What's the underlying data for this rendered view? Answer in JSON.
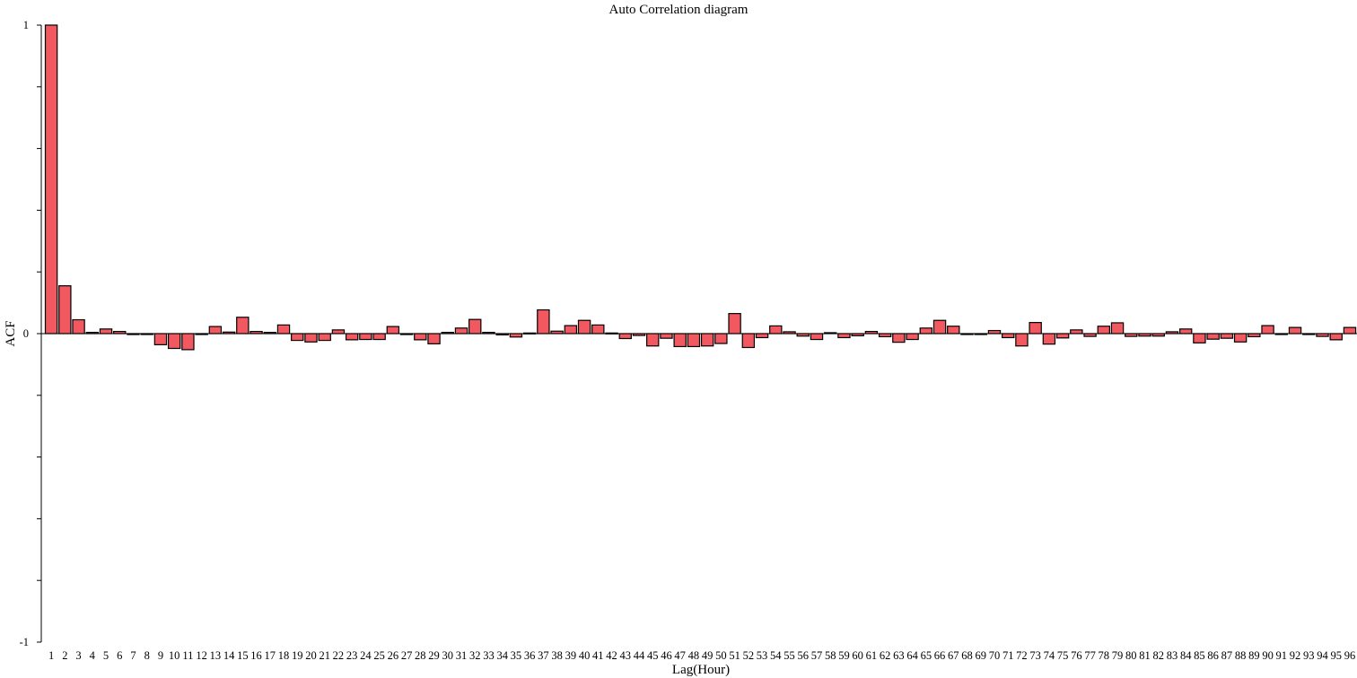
{
  "chart_data": {
    "type": "bar",
    "title": "Auto Correlation diagram",
    "xlabel": "Lag(Hour)",
    "ylabel": "ACF",
    "ylim": [
      -1,
      1
    ],
    "yticks": [
      {
        "value": 1,
        "label": "1"
      },
      {
        "value": 0.8,
        "label": ""
      },
      {
        "value": 0.6,
        "label": ""
      },
      {
        "value": 0.4,
        "label": ""
      },
      {
        "value": 0.2,
        "label": ""
      },
      {
        "value": 0,
        "label": "0"
      },
      {
        "value": -0.2,
        "label": ""
      },
      {
        "value": -0.4,
        "label": ""
      },
      {
        "value": -0.6,
        "label": ""
      },
      {
        "value": -0.8,
        "label": ""
      },
      {
        "value": -1,
        "label": "-1"
      }
    ],
    "grid": false,
    "legend": "none",
    "bar_color": "#f25860",
    "bar_edge_color": "#000000",
    "categories": [
      "1",
      "2",
      "3",
      "4",
      "5",
      "6",
      "7",
      "8",
      "9",
      "10",
      "11",
      "12",
      "13",
      "14",
      "15",
      "16",
      "17",
      "18",
      "19",
      "20",
      "21",
      "22",
      "23",
      "24",
      "25",
      "26",
      "27",
      "28",
      "29",
      "30",
      "31",
      "32",
      "33",
      "34",
      "35",
      "36",
      "37",
      "38",
      "39",
      "40",
      "41",
      "42",
      "43",
      "44",
      "45",
      "46",
      "47",
      "48",
      "49",
      "50",
      "51",
      "52",
      "53",
      "54",
      "55",
      "56",
      "57",
      "58",
      "59",
      "60",
      "61",
      "62",
      "63",
      "64",
      "65",
      "66",
      "67",
      "68",
      "69",
      "70",
      "71",
      "72",
      "73",
      "74",
      "75",
      "76",
      "77",
      "78",
      "79",
      "80",
      "81",
      "82",
      "83",
      "84",
      "85",
      "86",
      "87",
      "88",
      "89",
      "90",
      "91",
      "92",
      "93",
      "94",
      "95",
      "96"
    ],
    "values": [
      1.0,
      0.155,
      0.045,
      0.004,
      0.015,
      0.007,
      -0.003,
      -0.002,
      -0.036,
      -0.048,
      -0.052,
      -0.002,
      0.023,
      0.005,
      0.053,
      0.007,
      0.004,
      0.028,
      -0.022,
      -0.027,
      -0.022,
      0.012,
      -0.02,
      -0.019,
      -0.019,
      0.023,
      -0.003,
      -0.02,
      -0.033,
      0.004,
      0.018,
      0.046,
      0.004,
      -0.004,
      -0.011,
      0.002,
      0.077,
      0.008,
      0.026,
      0.043,
      0.028,
      0.002,
      -0.016,
      -0.006,
      -0.04,
      -0.015,
      -0.042,
      -0.042,
      -0.04,
      -0.032,
      0.065,
      -0.045,
      -0.013,
      0.025,
      0.006,
      -0.008,
      -0.019,
      0.003,
      -0.013,
      -0.007,
      0.007,
      -0.01,
      -0.028,
      -0.019,
      0.018,
      0.043,
      0.024,
      -0.002,
      -0.002,
      0.01,
      -0.013,
      -0.04,
      0.036,
      -0.034,
      -0.014,
      0.012,
      -0.009,
      0.024,
      0.035,
      -0.009,
      -0.008,
      -0.008,
      0.006,
      0.015,
      -0.03,
      -0.018,
      -0.015,
      -0.027,
      -0.01,
      0.026,
      -0.002,
      0.02,
      -0.002,
      -0.009,
      -0.02,
      0.02
    ]
  }
}
